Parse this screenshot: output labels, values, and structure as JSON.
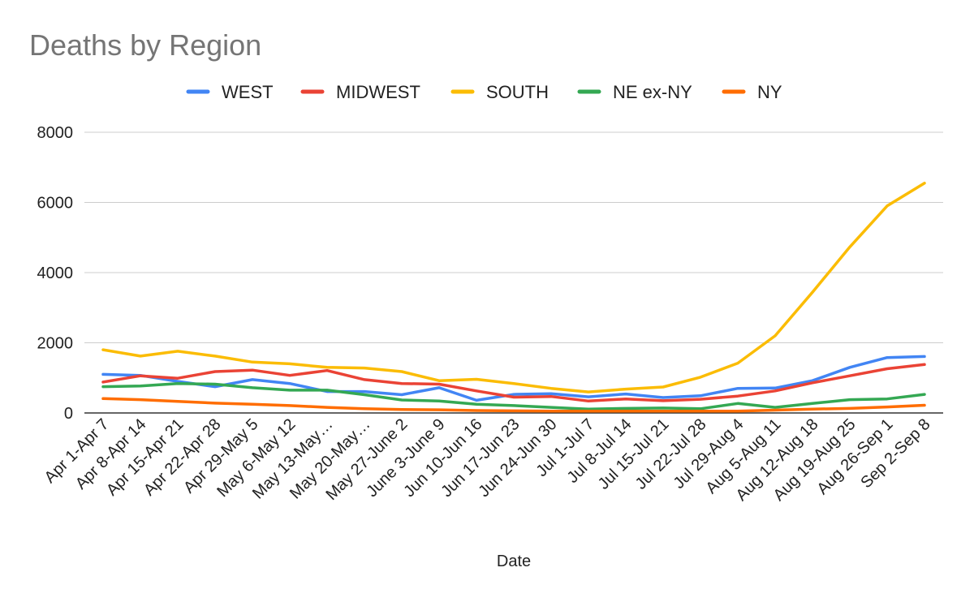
{
  "chart_data": {
    "type": "line",
    "title": "Deaths by Region",
    "xlabel": "Date",
    "ylabel": "",
    "ylim": [
      0,
      8000
    ],
    "yticks": [
      0,
      2000,
      4000,
      6000,
      8000
    ],
    "grid": true,
    "legend_position": "top",
    "categories": [
      "Apr 1-Apr 7",
      "Apr 8-Apr 14",
      "Apr 15-Apr 21",
      "Apr 22-Apr 28",
      "Apr 29-May 5",
      "May 6-May 12",
      "May 13-May…",
      "May 20-May…",
      "May 27-June 2",
      "June 3-June 9",
      "Jun 10-Jun 16",
      "Jun 17-Jun 23",
      "Jun 24-Jun 30",
      "Jul 1-Jul 7",
      "Jul 8-Jul 14",
      "Jul 15-Jul 21",
      "Jul 22-Jul 28",
      "Jul 29-Aug 4",
      "Aug 5-Aug 11",
      "Aug 12-Aug 18",
      "Aug 19-Aug 25",
      "Aug 26-Sep 1",
      "Sep 2-Sep 8"
    ],
    "series": [
      {
        "name": "WEST",
        "color": "#4285f4",
        "values": [
          1100,
          1070,
          900,
          750,
          950,
          840,
          610,
          610,
          520,
          720,
          360,
          530,
          550,
          460,
          540,
          440,
          490,
          700,
          710,
          920,
          1300,
          1580,
          1610
        ]
      },
      {
        "name": "MIDWEST",
        "color": "#ea4335",
        "values": [
          880,
          1060,
          990,
          1180,
          1220,
          1070,
          1210,
          950,
          840,
          820,
          630,
          450,
          470,
          340,
          400,
          350,
          390,
          480,
          630,
          860,
          1060,
          1260,
          1380
        ]
      },
      {
        "name": "SOUTH",
        "color": "#fbbc04",
        "values": [
          1800,
          1620,
          1760,
          1620,
          1450,
          1400,
          1300,
          1280,
          1180,
          920,
          960,
          840,
          700,
          600,
          680,
          740,
          1020,
          1420,
          2200,
          3440,
          4730,
          5900,
          6550
        ]
      },
      {
        "name": "NE ex-NY",
        "color": "#34a853",
        "values": [
          750,
          770,
          840,
          820,
          720,
          650,
          650,
          520,
          370,
          340,
          250,
          210,
          160,
          110,
          130,
          140,
          120,
          270,
          160,
          270,
          380,
          400,
          530
        ]
      },
      {
        "name": "NY",
        "color": "#ff6d01",
        "values": [
          410,
          380,
          330,
          280,
          250,
          210,
          160,
          120,
          100,
          90,
          70,
          60,
          50,
          50,
          50,
          50,
          50,
          50,
          80,
          110,
          130,
          170,
          220
        ]
      }
    ]
  }
}
